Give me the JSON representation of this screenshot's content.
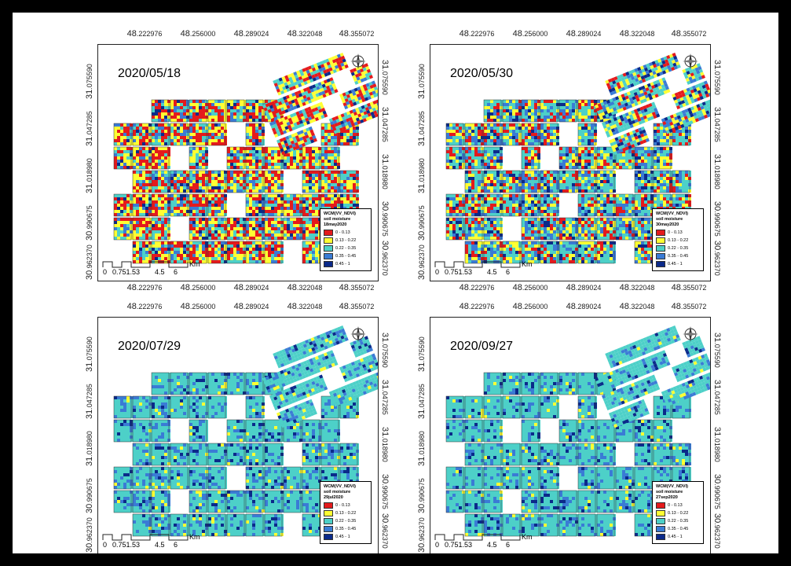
{
  "colors": {
    "legend": [
      "#e41a1c",
      "#ffff33",
      "#4dd0c8",
      "#3a7bd5",
      "#0b2a8a"
    ],
    "frame": "#000000"
  },
  "x_ticks": [
    {
      "prefix": "48",
      "suffix": ".222976"
    },
    {
      "prefix": "48",
      "suffix": ".256000"
    },
    {
      "prefix": "48",
      "suffix": ".289024"
    },
    {
      "prefix": "48",
      "suffix": ".322048"
    },
    {
      "prefix": "48",
      "suffix": ".355072"
    }
  ],
  "y_ticks": [
    {
      "prefix": "31",
      "suffix": ".075590"
    },
    {
      "prefix": "31",
      "suffix": ".047285"
    },
    {
      "prefix": "31",
      "suffix": ".018980"
    },
    {
      "prefix": "30",
      "suffix": ".990675"
    },
    {
      "prefix": "30",
      "suffix": ".962370"
    }
  ],
  "scale": {
    "labels": [
      "0",
      "0.751.5",
      "3",
      "4.5",
      "6"
    ],
    "unit": "Km"
  },
  "legend_title_1": "WCM(VV_NDVI)",
  "legend_title_2": "soil moisture",
  "legend_classes": [
    "0 - 0.13",
    "0.13 - 0.22",
    "0.22 - 0.35",
    "0.35 - 0.45",
    "0.45 - 1"
  ],
  "north_symbols": {
    "n": "N",
    "s": "S",
    "e": "E",
    "w": "W"
  },
  "panels": [
    {
      "date": "2020/05/18",
      "legend_date": "18may2020",
      "palette_weights": [
        0.3,
        0.3,
        0.22,
        0.12,
        0.06
      ]
    },
    {
      "date": "2020/05/30",
      "legend_date": "30may2020",
      "palette_weights": [
        0.16,
        0.2,
        0.34,
        0.2,
        0.1
      ]
    },
    {
      "date": "2020/07/29",
      "legend_date": "29jul2020",
      "palette_weights": [
        0.0,
        0.05,
        0.7,
        0.18,
        0.07
      ]
    },
    {
      "date": "2020/09/27",
      "legend_date": "27sep2020",
      "palette_weights": [
        0.0,
        0.04,
        0.72,
        0.17,
        0.07
      ]
    }
  ]
}
